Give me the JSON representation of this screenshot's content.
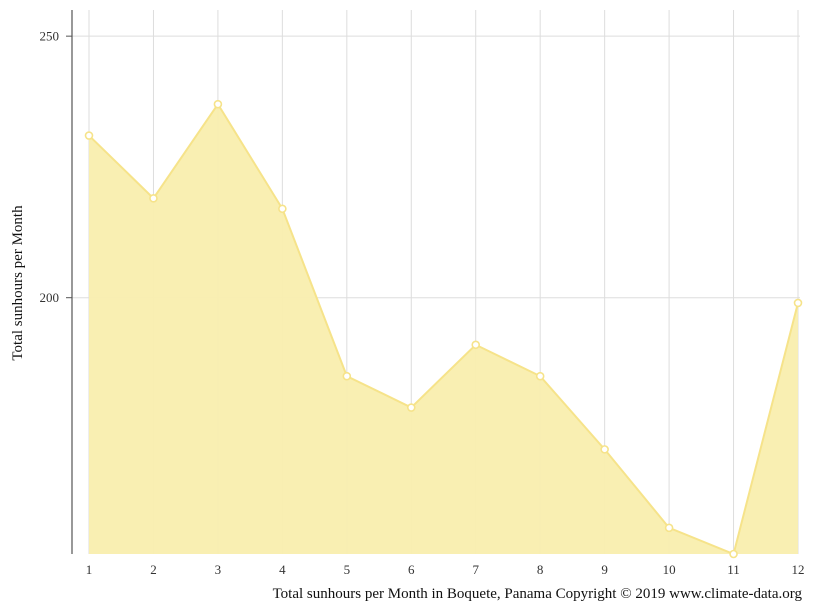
{
  "chart_data": {
    "type": "area",
    "x": [
      1,
      2,
      3,
      4,
      5,
      6,
      7,
      8,
      9,
      10,
      11,
      12
    ],
    "y": [
      231,
      219,
      237,
      217,
      185,
      179,
      191,
      185,
      171,
      156,
      151,
      199
    ],
    "ylabel": "Total sunhours per Month",
    "xlabel": "",
    "xticks": [
      "1",
      "2",
      "3",
      "4",
      "5",
      "6",
      "7",
      "8",
      "9",
      "10",
      "11",
      "12"
    ],
    "yticks": [
      "200",
      "250"
    ],
    "ylim": [
      151,
      255
    ],
    "grid": true,
    "caption": "Total sunhours per Month in Boquete, Panama Copyright © 2019 www.climate-data.org",
    "colors": {
      "fill": "#f9eeae",
      "line": "#f6e38a",
      "grid": "#dddddd",
      "axis": "#555555"
    }
  }
}
